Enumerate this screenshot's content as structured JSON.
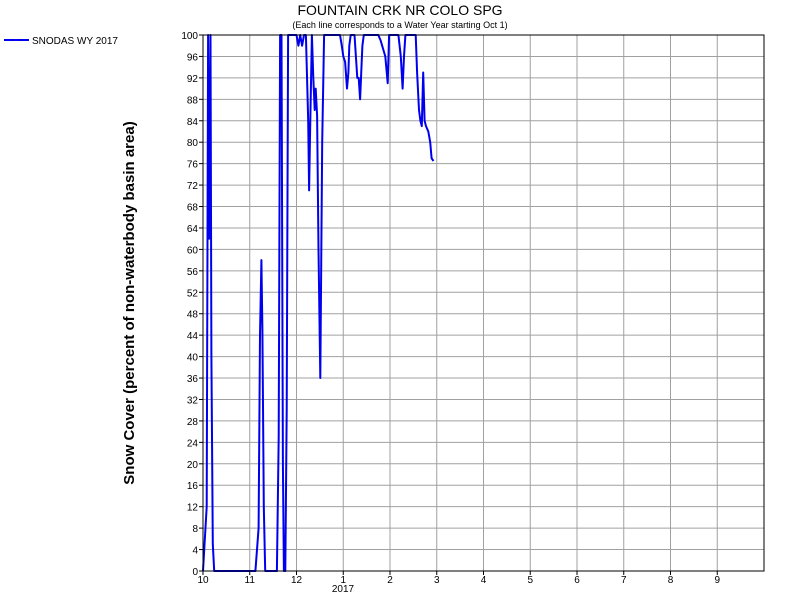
{
  "chart_data": {
    "type": "line",
    "title": "FOUNTAIN CRK NR COLO SPG",
    "subtitle": "(Each line corresponds to a Water Year starting Oct 1)",
    "ylabel": "Snow Cover (percent of non-waterbody basin area)",
    "xlabel": "",
    "year_label": "2017",
    "ylim": [
      0,
      100
    ],
    "y_ticks": [
      0,
      4,
      8,
      12,
      16,
      20,
      24,
      28,
      32,
      36,
      40,
      44,
      48,
      52,
      56,
      60,
      64,
      68,
      72,
      76,
      80,
      84,
      88,
      92,
      96,
      100
    ],
    "x_ticks": [
      {
        "month": 0,
        "label": "10"
      },
      {
        "month": 1,
        "label": "11"
      },
      {
        "month": 2,
        "label": "12"
      },
      {
        "month": 3,
        "label": "1"
      },
      {
        "month": 4,
        "label": "2"
      },
      {
        "month": 5,
        "label": "3"
      },
      {
        "month": 6,
        "label": "4"
      },
      {
        "month": 7,
        "label": "5"
      },
      {
        "month": 8,
        "label": "6"
      },
      {
        "month": 9,
        "label": "7"
      },
      {
        "month": 10,
        "label": "8"
      },
      {
        "month": 11,
        "label": "9"
      }
    ],
    "grid": true,
    "legend_position": "top-left",
    "colors": {
      "series": "#0000ee",
      "grid": "#a0a0a0",
      "axis": "#000000"
    },
    "series": [
      {
        "name": "SNODAS WY 2017",
        "color": "#0000ee",
        "points": [
          [
            0.0,
            0
          ],
          [
            0.08,
            12
          ],
          [
            0.11,
            100
          ],
          [
            0.13,
            62
          ],
          [
            0.16,
            100
          ],
          [
            0.18,
            40
          ],
          [
            0.21,
            5
          ],
          [
            0.24,
            0
          ],
          [
            0.5,
            0
          ],
          [
            0.9,
            0
          ],
          [
            1.12,
            0
          ],
          [
            1.19,
            8
          ],
          [
            1.22,
            44
          ],
          [
            1.25,
            58
          ],
          [
            1.27,
            45
          ],
          [
            1.3,
            12
          ],
          [
            1.33,
            0
          ],
          [
            1.58,
            0
          ],
          [
            1.62,
            25
          ],
          [
            1.65,
            100
          ],
          [
            1.68,
            100
          ],
          [
            1.71,
            20
          ],
          [
            1.73,
            0
          ],
          [
            1.76,
            0
          ],
          [
            1.79,
            30
          ],
          [
            1.82,
            100
          ],
          [
            2.0,
            100
          ],
          [
            2.04,
            98
          ],
          [
            2.08,
            100
          ],
          [
            2.12,
            98
          ],
          [
            2.16,
            100
          ],
          [
            2.2,
            100
          ],
          [
            2.25,
            84
          ],
          [
            2.27,
            71
          ],
          [
            2.29,
            82
          ],
          [
            2.33,
            100
          ],
          [
            2.36,
            92
          ],
          [
            2.39,
            86
          ],
          [
            2.41,
            90
          ],
          [
            2.44,
            85
          ],
          [
            2.47,
            60
          ],
          [
            2.51,
            36
          ],
          [
            2.55,
            80
          ],
          [
            2.59,
            100
          ],
          [
            2.65,
            100
          ],
          [
            2.9,
            100
          ],
          [
            2.93,
            100
          ],
          [
            2.97,
            98
          ],
          [
            3.0,
            96
          ],
          [
            3.04,
            95
          ],
          [
            3.08,
            90
          ],
          [
            3.11,
            93
          ],
          [
            3.13,
            98
          ],
          [
            3.16,
            100
          ],
          [
            3.24,
            100
          ],
          [
            3.27,
            96
          ],
          [
            3.3,
            92
          ],
          [
            3.33,
            92
          ],
          [
            3.36,
            88
          ],
          [
            3.38,
            92
          ],
          [
            3.41,
            98
          ],
          [
            3.44,
            100
          ],
          [
            3.6,
            100
          ],
          [
            3.75,
            100
          ],
          [
            3.8,
            99
          ],
          [
            3.9,
            96
          ],
          [
            3.95,
            91
          ],
          [
            3.98,
            100
          ],
          [
            4.1,
            100
          ],
          [
            4.18,
            100
          ],
          [
            4.23,
            96
          ],
          [
            4.27,
            90
          ],
          [
            4.3,
            96
          ],
          [
            4.33,
            100
          ],
          [
            4.42,
            100
          ],
          [
            4.5,
            100
          ],
          [
            4.55,
            100
          ],
          [
            4.58,
            93
          ],
          [
            4.62,
            86
          ],
          [
            4.65,
            84
          ],
          [
            4.68,
            83
          ],
          [
            4.71,
            93
          ],
          [
            4.74,
            84
          ],
          [
            4.77,
            83
          ],
          [
            4.82,
            82
          ],
          [
            4.86,
            80
          ],
          [
            4.89,
            77
          ],
          [
            4.93,
            76.5
          ]
        ]
      }
    ]
  }
}
